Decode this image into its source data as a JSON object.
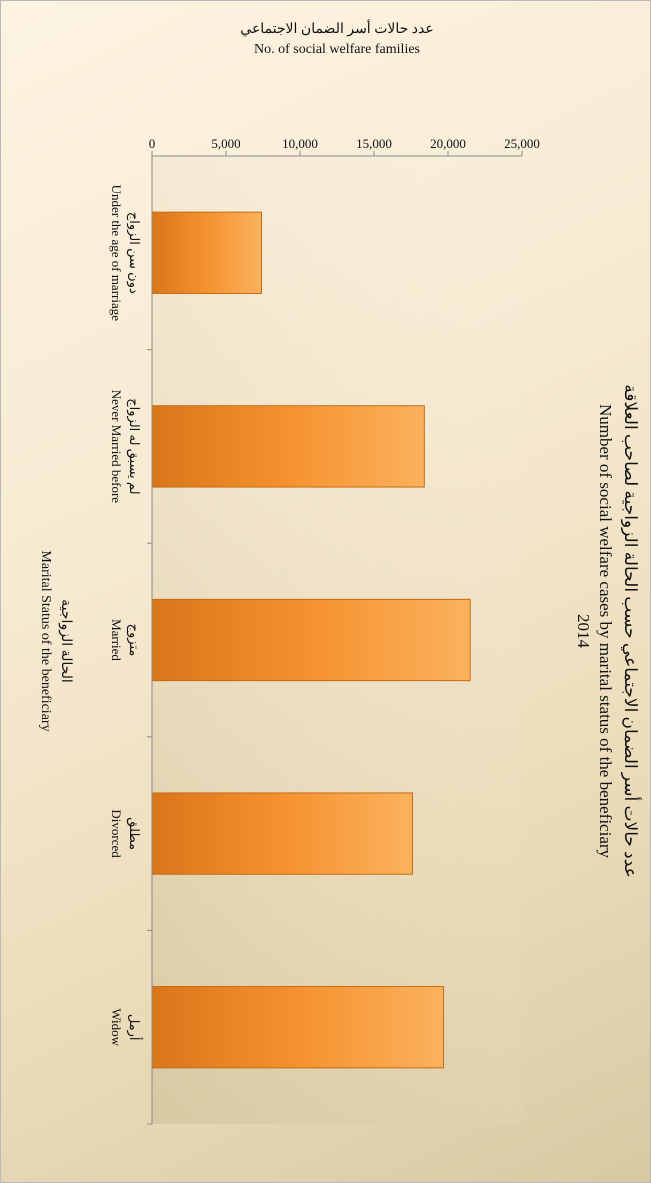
{
  "chart_data": {
    "type": "bar",
    "title_ar": "عدد حالات أسر الضمان الاجتماعي حسب الحالة الزواجية لصاحب العلاقة",
    "title_en": "Number of social welfare cases by marital status of the beneficiary",
    "title_year": "2014",
    "ylabel_ar": "عدد حالات أسر الضمان الاجتماعي",
    "ylabel_en": "No. of social welfare families",
    "xlabel_ar": "الحالة الزواجية",
    "xlabel_en": "Marital Status of the beneficiary",
    "ylim": [
      0,
      25000
    ],
    "yticks": [
      "0",
      "5,000",
      "10,000",
      "15,000",
      "20,000",
      "25,000"
    ],
    "ytick_values": [
      0,
      5000,
      10000,
      15000,
      20000,
      25000
    ],
    "categories_ar": [
      "دون سن الزواج",
      "لم يسبق له الزواج",
      "متزوج",
      "مطلق",
      "أرمل"
    ],
    "categories": [
      "Under the age of marriage",
      "Never Married before",
      "Married",
      "Divorced",
      "Widow"
    ],
    "values": [
      7400,
      18400,
      21500,
      17600,
      19700
    ],
    "bar_color": "#f5922f",
    "grid": false
  }
}
